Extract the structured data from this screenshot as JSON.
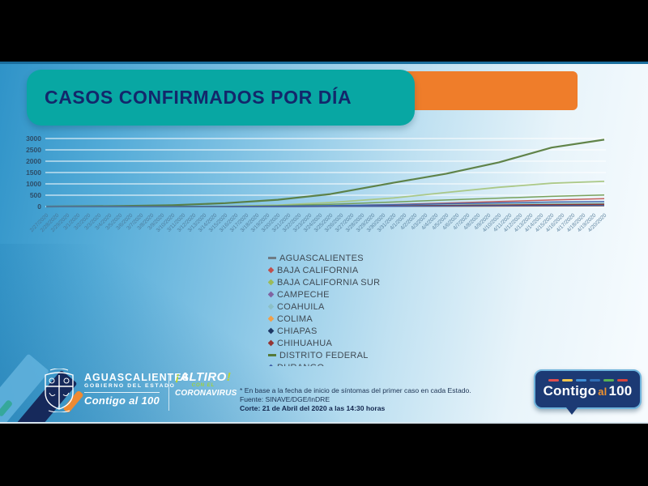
{
  "slide": {
    "title": "CASOS CONFIRMADOS POR DÍA"
  },
  "colors": {
    "banner_teal": "#08a7a3",
    "banner_orange": "#ef7d2a",
    "title_text": "#13276b",
    "frame_black": "#000000",
    "slide_blue_dark": "#2f93c8",
    "slide_blue_light": "#f6fbfe",
    "gridline": "#ffffff",
    "badge_navy": "#1c3a74",
    "badge_dash_colors": [
      "#e14f4f",
      "#f2c64e",
      "#3f8fd6",
      "#2f6db5",
      "#58b054",
      "#d8443d"
    ]
  },
  "footer": {
    "gov_logo": {
      "state": "AGUASCALIENTES",
      "sub": "GOBIERNO DEL ESTADO",
      "slogan": "Contigo al 100"
    },
    "campaign_logo": {
      "excl_open": "¡",
      "word1": "ALTIRO",
      "excl_close": "!",
      "line2": "CON EL",
      "line3": "CORONAVIRUS"
    },
    "notes": {
      "line1": "* En base a la fecha de inicio de síntomas del primer caso en cada Estado.",
      "line2": "Fuente: SINAVE/DGE/InDRE",
      "line3": "Corte: 21 de Abril del 2020 a las 14:30 horas"
    },
    "badge": {
      "part1": "Contigo",
      "part2": "al",
      "part3": "100"
    }
  },
  "chart_data": {
    "type": "line",
    "title": "CASOS CONFIRMADOS POR DÍA",
    "grid": true,
    "ylim": [
      0,
      3000
    ],
    "yticks": [
      0,
      500,
      1000,
      1500,
      2000,
      2500,
      3000
    ],
    "legend_position": "below plot, left-center, clipped at bottom",
    "x_dates": [
      "2/27/2020",
      "2/28/2020",
      "2/29/2020",
      "3/1/2020",
      "3/2/2020",
      "3/3/2020",
      "3/4/2020",
      "3/5/2020",
      "3/6/2020",
      "3/7/2020",
      "3/8/2020",
      "3/9/2020",
      "3/10/2020",
      "3/11/2020",
      "3/12/2020",
      "3/13/2020",
      "3/14/2020",
      "3/15/2020",
      "3/16/2020",
      "3/17/2020",
      "3/18/2020",
      "3/19/2020",
      "3/20/2020",
      "3/21/2020",
      "3/22/2020",
      "3/23/2020",
      "3/24/2020",
      "3/25/2020",
      "3/26/2020",
      "3/27/2020",
      "3/28/2020",
      "3/29/2020",
      "3/30/2020",
      "3/31/2020",
      "4/1/2020",
      "4/2/2020",
      "4/3/2020",
      "4/4/2020",
      "4/5/2020",
      "4/6/2020",
      "4/7/2020",
      "4/8/2020",
      "4/9/2020",
      "4/10/2020",
      "4/11/2020",
      "4/12/2020",
      "4/13/2020",
      "4/14/2020",
      "4/15/2020",
      "4/16/2020",
      "4/17/2020",
      "4/18/2020",
      "4/19/2020",
      "4/20/2020"
    ],
    "sample_dates": [
      "2/27/2020",
      "3/5/2020",
      "3/10/2020",
      "3/15/2020",
      "3/20/2020",
      "3/25/2020",
      "3/31/2020",
      "4/5/2020",
      "4/10/2020",
      "4/15/2020",
      "4/20/2020"
    ],
    "series": [
      {
        "name": "AGUASCALIENTES",
        "color": "#6e7b85",
        "marker": "dash",
        "values": [
          0,
          1,
          2,
          5,
          15,
          30,
          45,
          60,
          75,
          90,
          100
        ]
      },
      {
        "name": "BAJA CALIFORNIA",
        "color": "#c0504d",
        "marker": "diamond",
        "values": [
          0,
          0,
          1,
          5,
          15,
          40,
          90,
          150,
          220,
          290,
          350
        ]
      },
      {
        "name": "BAJA CALIFORNIA SUR",
        "color": "#9bbb59",
        "marker": "diamond",
        "values": [
          0,
          0,
          1,
          4,
          10,
          25,
          45,
          70,
          95,
          115,
          130
        ]
      },
      {
        "name": "CAMPECHE",
        "color": "#8064a2",
        "marker": "diamond",
        "values": [
          0,
          0,
          0,
          1,
          3,
          6,
          12,
          18,
          25,
          33,
          40
        ]
      },
      {
        "name": "COAHUILA",
        "color": "#8cc0c6",
        "marker": "diamond",
        "values": [
          0,
          0,
          2,
          8,
          20,
          45,
          75,
          100,
          120,
          140,
          155
        ]
      },
      {
        "name": "COLIMA",
        "color": "#f0a04b",
        "marker": "diamond",
        "values": [
          0,
          0,
          0,
          1,
          2,
          5,
          8,
          12,
          16,
          20,
          25
        ]
      },
      {
        "name": "CHIAPAS",
        "color": "#1f3864",
        "marker": "diamond",
        "values": [
          0,
          0,
          0,
          2,
          5,
          12,
          25,
          40,
          55,
          70,
          85
        ]
      },
      {
        "name": "CHIHUAHUA",
        "color": "#943634",
        "marker": "diamond",
        "values": [
          0,
          0,
          0,
          1,
          4,
          10,
          25,
          45,
          65,
          85,
          100
        ]
      },
      {
        "name": "DISTRITO FEDERAL",
        "color": "#557a3a",
        "marker": "dash",
        "width": 2.2,
        "values": [
          1,
          20,
          60,
          150,
          300,
          550,
          1050,
          1450,
          1950,
          2600,
          2950
        ]
      },
      {
        "name": "DURANGO",
        "color": "#3d5ea8",
        "marker": "diamond",
        "legend_clipped": true,
        "values": [
          0,
          0,
          0,
          1,
          3,
          6,
          12,
          18,
          25,
          32,
          40
        ]
      },
      {
        "name": "",
        "note": "unlabeled series, legend cut off by slide edge",
        "color": "#a6c47e",
        "marker": "none",
        "width": 1.8,
        "values": [
          0,
          0,
          1,
          10,
          60,
          180,
          380,
          620,
          850,
          1030,
          1110
        ]
      },
      {
        "name": "",
        "note": "unlabeled series, legend cut off by slide edge",
        "color": "#6f9a4e",
        "marker": "none",
        "values": [
          0,
          0,
          2,
          10,
          40,
          100,
          200,
          290,
          370,
          450,
          510
        ]
      },
      {
        "name": "",
        "note": "unlabeled series, legend cut off by slide edge",
        "color": "#3c63ae",
        "marker": "none",
        "values": [
          0,
          0,
          1,
          5,
          15,
          40,
          80,
          125,
          165,
          200,
          225
        ]
      }
    ]
  }
}
